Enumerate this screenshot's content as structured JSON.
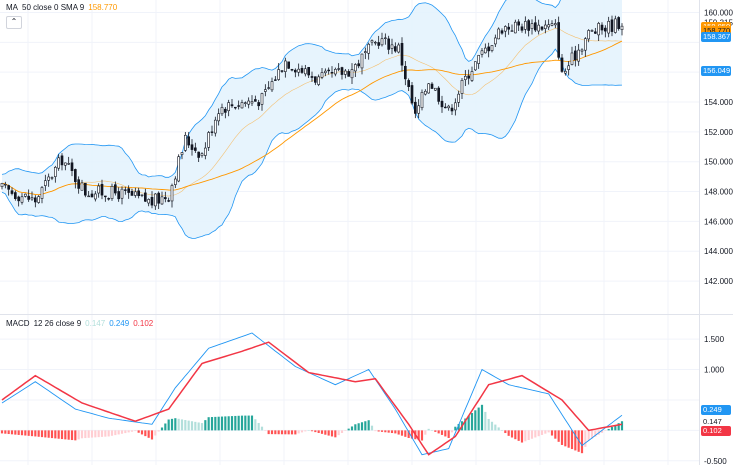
{
  "main_legend": {
    "name": "MA",
    "params": "50 close 0 SMA 9",
    "value": "158.770",
    "value_color": "#ff9800",
    "collapse_icon": "chevron-up-icon"
  },
  "macd_legend": {
    "name": "MACD",
    "params": "12 26 close 9",
    "v1": "0.147",
    "v1_color": "#b2dfdb",
    "v2": "0.249",
    "v2_color": "#2196f3",
    "v3": "0.102",
    "v3_color": "#f23645"
  },
  "price_axis": {
    "ticks": [
      "160.000",
      "159.315",
      "154.000",
      "152.000",
      "150.000",
      "148.000",
      "146.000",
      "144.000",
      "142.000"
    ],
    "tags": [
      {
        "text": "159.050",
        "bg": "#ff9800",
        "fg": "#ffffff"
      },
      {
        "text": "158.770",
        "bg": "#ff9800",
        "fg": "#131722"
      },
      {
        "text": "158.367",
        "bg": "#2196f3",
        "fg": "#ffffff"
      },
      {
        "text": "156.049",
        "bg": "#2196f3",
        "fg": "#ffffff"
      }
    ]
  },
  "macd_axis": {
    "ticks": [
      "1.500",
      "1.000",
      "-0.500"
    ],
    "tags": [
      {
        "text": "0.249",
        "bg": "#2196f3",
        "fg": "#ffffff"
      },
      {
        "text": "0.147",
        "bg": "#ffffff",
        "fg": "#131722"
      },
      {
        "text": "0.102",
        "bg": "#f23645",
        "fg": "#ffffff"
      }
    ]
  },
  "colors": {
    "band_fill": "#e3f2fd",
    "band_line": "#2196f3",
    "ma_line": "#ff9800",
    "candle": "#131722",
    "macd_line": "#2196f3",
    "signal_line": "#f23645",
    "hist_pos_strong": "#26a69a",
    "hist_pos_weak": "#b2dfdb",
    "hist_neg_strong": "#ff5252",
    "hist_neg_weak": "#ffcdd2"
  },
  "chart_data": {
    "type": "candlestick",
    "price_panel": {
      "ylim": [
        141,
        160.3
      ],
      "overlays": [
        "Bollinger Bands",
        "MA 50 close 0 SMA 9"
      ],
      "anchors": [
        {
          "i": 0,
          "close": 148.2
        },
        {
          "i": 10,
          "close": 147.4
        },
        {
          "i": 18,
          "close": 150.2
        },
        {
          "i": 25,
          "close": 148.0
        },
        {
          "i": 35,
          "close": 147.9
        },
        {
          "i": 45,
          "close": 147.3
        },
        {
          "i": 50,
          "close": 147.8
        },
        {
          "i": 55,
          "close": 151.5
        },
        {
          "i": 60,
          "close": 150.5
        },
        {
          "i": 65,
          "close": 153.6
        },
        {
          "i": 70,
          "close": 153.9
        },
        {
          "i": 78,
          "close": 154.2
        },
        {
          "i": 85,
          "close": 156.8
        },
        {
          "i": 95,
          "close": 155.5
        },
        {
          "i": 105,
          "close": 156.2
        },
        {
          "i": 113,
          "close": 158.2
        },
        {
          "i": 119,
          "close": 157.6
        },
        {
          "i": 124,
          "close": 153.0
        },
        {
          "i": 128,
          "close": 155.5
        },
        {
          "i": 134,
          "close": 153.4
        },
        {
          "i": 140,
          "close": 156.0
        },
        {
          "i": 150,
          "close": 159.0
        },
        {
          "i": 158,
          "close": 159.2
        },
        {
          "i": 166,
          "close": 159.0
        },
        {
          "i": 168,
          "close": 155.8
        },
        {
          "i": 176,
          "close": 158.6
        },
        {
          "i": 186,
          "close": 159.4
        }
      ]
    },
    "macd_panel": {
      "ylim": [
        -0.52,
        1.65
      ],
      "macd_anchors": [
        {
          "i": 0,
          "v": 0.45
        },
        {
          "i": 10,
          "v": 0.8
        },
        {
          "i": 22,
          "v": 0.35
        },
        {
          "i": 32,
          "v": 0.2
        },
        {
          "i": 45,
          "v": 0.1
        },
        {
          "i": 52,
          "v": 0.7
        },
        {
          "i": 62,
          "v": 1.35
        },
        {
          "i": 75,
          "v": 1.6
        },
        {
          "i": 88,
          "v": 1.05
        },
        {
          "i": 100,
          "v": 0.75
        },
        {
          "i": 110,
          "v": 1.0
        },
        {
          "i": 118,
          "v": 0.35
        },
        {
          "i": 126,
          "v": -0.4
        },
        {
          "i": 134,
          "v": -0.3
        },
        {
          "i": 144,
          "v": 1.0
        },
        {
          "i": 152,
          "v": 0.75
        },
        {
          "i": 164,
          "v": 0.6
        },
        {
          "i": 174,
          "v": -0.25
        },
        {
          "i": 186,
          "v": 0.25
        }
      ],
      "signal_anchors": [
        {
          "i": 0,
          "v": 0.5
        },
        {
          "i": 10,
          "v": 0.9
        },
        {
          "i": 24,
          "v": 0.45
        },
        {
          "i": 40,
          "v": 0.15
        },
        {
          "i": 50,
          "v": 0.35
        },
        {
          "i": 60,
          "v": 1.1
        },
        {
          "i": 72,
          "v": 1.3
        },
        {
          "i": 80,
          "v": 1.45
        },
        {
          "i": 92,
          "v": 0.95
        },
        {
          "i": 106,
          "v": 0.8
        },
        {
          "i": 112,
          "v": 0.85
        },
        {
          "i": 122,
          "v": 0.1
        },
        {
          "i": 128,
          "v": -0.4
        },
        {
          "i": 136,
          "v": -0.1
        },
        {
          "i": 146,
          "v": 0.75
        },
        {
          "i": 156,
          "v": 0.9
        },
        {
          "i": 168,
          "v": 0.5
        },
        {
          "i": 176,
          "v": 0.0
        },
        {
          "i": 186,
          "v": 0.1
        }
      ]
    }
  }
}
